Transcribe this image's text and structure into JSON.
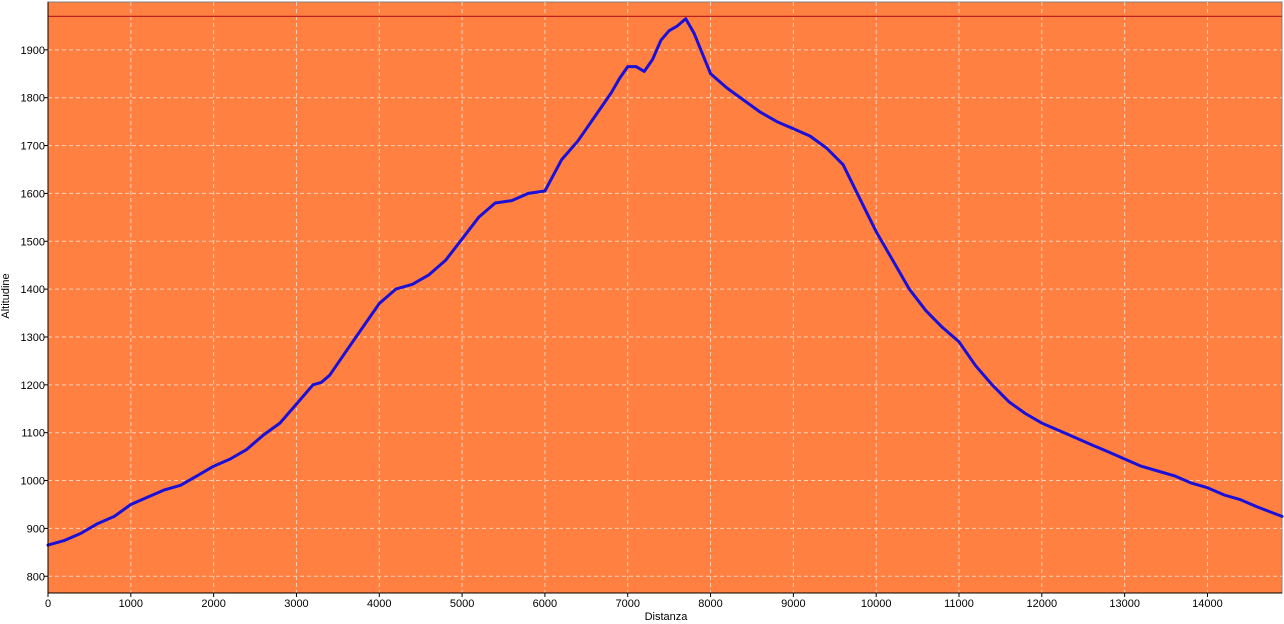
{
  "chart_data": {
    "type": "line",
    "title": "",
    "xlabel": "Distanza",
    "ylabel": "Altitudine",
    "xlim": [
      0,
      14900
    ],
    "ylim": [
      765,
      2000
    ],
    "x_ticks": [
      0,
      1000,
      2000,
      3000,
      4000,
      5000,
      6000,
      7000,
      8000,
      9000,
      10000,
      11000,
      12000,
      13000,
      14000
    ],
    "y_ticks": [
      800,
      900,
      1000,
      1100,
      1200,
      1300,
      1400,
      1500,
      1600,
      1700,
      1800,
      1900
    ],
    "grid": true,
    "legend": "none",
    "reference_line": {
      "y": 1970,
      "color": "#c0201c"
    },
    "colors": {
      "plot_background": "#ff8040",
      "line": "#1a10d8",
      "grid": "#f4d0b8"
    },
    "series": [
      {
        "x": [
          0,
          200,
          400,
          600,
          800,
          1000,
          1200,
          1400,
          1600,
          1800,
          2000,
          2200,
          2400,
          2600,
          2800,
          3000,
          3200,
          3300,
          3400,
          3600,
          3800,
          4000,
          4200,
          4400,
          4600,
          4800,
          5000,
          5200,
          5400,
          5600,
          5800,
          6000,
          6200,
          6400,
          6600,
          6800,
          6900,
          7000,
          7100,
          7200,
          7300,
          7400,
          7500,
          7600,
          7700,
          7800,
          8000,
          8200,
          8400,
          8600,
          8800,
          9000,
          9200,
          9400,
          9600,
          9800,
          10000,
          10200,
          10400,
          10600,
          10800,
          11000,
          11200,
          11400,
          11600,
          11800,
          12000,
          12200,
          12400,
          12600,
          12800,
          13000,
          13200,
          13400,
          13600,
          13800,
          14000,
          14200,
          14400,
          14600,
          14900
        ],
        "y": [
          865,
          875,
          890,
          910,
          925,
          950,
          965,
          980,
          990,
          1010,
          1030,
          1045,
          1065,
          1095,
          1120,
          1160,
          1200,
          1205,
          1220,
          1270,
          1320,
          1370,
          1400,
          1410,
          1430,
          1460,
          1505,
          1550,
          1580,
          1585,
          1600,
          1605,
          1670,
          1710,
          1760,
          1810,
          1840,
          1865,
          1865,
          1855,
          1880,
          1920,
          1940,
          1950,
          1965,
          1935,
          1850,
          1820,
          1795,
          1770,
          1750,
          1735,
          1720,
          1695,
          1660,
          1590,
          1520,
          1460,
          1400,
          1355,
          1320,
          1290,
          1240,
          1200,
          1165,
          1140,
          1120,
          1105,
          1090,
          1075,
          1060,
          1045,
          1030,
          1020,
          1010,
          995,
          985,
          970,
          960,
          945,
          925
        ]
      }
    ]
  }
}
